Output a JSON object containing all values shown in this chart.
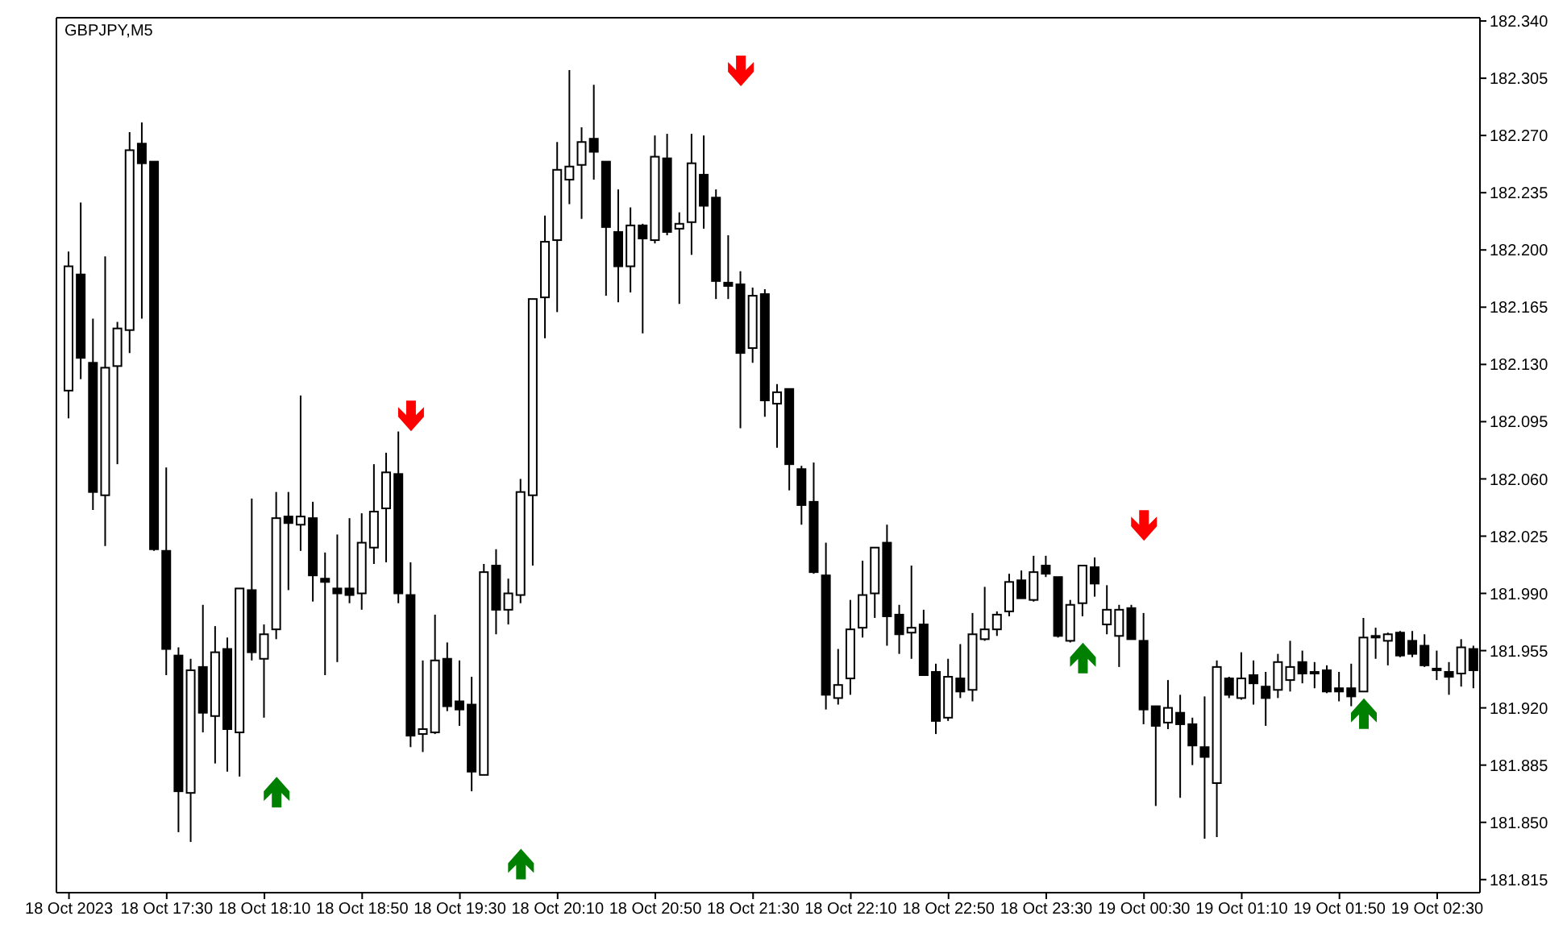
{
  "chart_data": {
    "type": "candlestick",
    "title": "GBPJPY,M5",
    "categories": [
      "18 Oct 2023",
      null,
      null,
      null,
      null,
      null,
      null,
      null,
      "18 Oct 17:30",
      null,
      null,
      null,
      null,
      null,
      null,
      null,
      "18 Oct 18:10",
      null,
      null,
      null,
      null,
      null,
      null,
      null,
      "18 Oct 18:50",
      null,
      null,
      null,
      null,
      null,
      null,
      null,
      "18 Oct 19:30",
      null,
      null,
      null,
      null,
      null,
      null,
      null,
      "18 Oct 20:10",
      null,
      null,
      null,
      null,
      null,
      null,
      null,
      "18 Oct 20:50",
      null,
      null,
      null,
      null,
      null,
      null,
      null,
      "18 Oct 21:30",
      null,
      null,
      null,
      null,
      null,
      null,
      null,
      "18 Oct 22:10",
      null,
      null,
      null,
      null,
      null,
      null,
      null,
      "18 Oct 22:50",
      null,
      null,
      null,
      null,
      null,
      null,
      null,
      "18 Oct 23:30",
      null,
      null,
      null,
      null,
      null,
      null,
      null,
      "19 Oct 00:30",
      null,
      null,
      null,
      null,
      null,
      null,
      null,
      "19 Oct 01:10",
      null,
      null,
      null,
      null,
      null,
      null,
      null,
      "19 Oct 01:50",
      null,
      null,
      null,
      null,
      null,
      null,
      null,
      "19 Oct 02:30",
      null,
      null,
      null
    ],
    "ohlc": [
      [
        182.114,
        182.199,
        182.097,
        182.19
      ],
      [
        182.185,
        182.229,
        182.121,
        182.134
      ],
      [
        182.131,
        182.158,
        182.041,
        182.052
      ],
      [
        182.05,
        182.196,
        182.019,
        182.128
      ],
      [
        182.129,
        182.156,
        182.069,
        182.152
      ],
      [
        182.151,
        182.272,
        182.137,
        182.261
      ],
      [
        182.265,
        182.278,
        182.158,
        182.253
      ],
      [
        182.254,
        182.254,
        182.016,
        182.017
      ],
      [
        182.016,
        182.067,
        181.94,
        181.956
      ],
      [
        181.952,
        181.957,
        181.844,
        181.869
      ],
      [
        181.868,
        181.95,
        181.838,
        181.943
      ],
      [
        181.945,
        181.983,
        181.905,
        181.917
      ],
      [
        181.915,
        181.97,
        181.886,
        181.954
      ],
      [
        181.956,
        181.963,
        181.881,
        181.907
      ],
      [
        181.905,
        181.993,
        181.878,
        181.993
      ],
      [
        181.992,
        182.048,
        181.949,
        181.954
      ],
      [
        181.95,
        181.971,
        181.914,
        181.965
      ],
      [
        181.968,
        182.052,
        181.962,
        182.036
      ],
      [
        182.037,
        182.052,
        181.992,
        182.033
      ],
      [
        182.032,
        182.111,
        182.016,
        182.037
      ],
      [
        182.036,
        182.046,
        181.985,
        182.001
      ],
      [
        181.999,
        182.015,
        181.94,
        181.997
      ],
      [
        181.993,
        182.026,
        181.948,
        181.99
      ],
      [
        181.993,
        182.036,
        181.984,
        181.989
      ],
      [
        181.99,
        182.039,
        181.98,
        182.021
      ],
      [
        182.018,
        182.069,
        182.008,
        182.04
      ],
      [
        182.042,
        182.076,
        182.009,
        182.064
      ],
      [
        182.063,
        182.089,
        181.984,
        181.99
      ],
      [
        181.989,
        182.009,
        181.896,
        181.903
      ],
      [
        181.904,
        181.949,
        181.893,
        181.907
      ],
      [
        181.905,
        181.977,
        181.904,
        181.949
      ],
      [
        181.95,
        181.96,
        181.918,
        181.921
      ],
      [
        181.924,
        181.949,
        181.909,
        181.919
      ],
      [
        181.922,
        181.939,
        181.869,
        181.881
      ],
      [
        181.879,
        182.008,
        181.879,
        182.003
      ],
      [
        182.007,
        182.017,
        181.965,
        181.98
      ],
      [
        181.98,
        181.999,
        181.971,
        181.99
      ],
      [
        181.989,
        182.06,
        181.984,
        182.052
      ],
      [
        182.05,
        182.17,
        182.007,
        182.17
      ],
      [
        182.171,
        182.221,
        182.146,
        182.205
      ],
      [
        182.206,
        182.266,
        182.162,
        182.249
      ],
      [
        182.243,
        182.31,
        182.228,
        182.251
      ],
      [
        182.252,
        182.275,
        182.219,
        182.266
      ],
      [
        182.268,
        182.301,
        182.243,
        182.26
      ],
      [
        182.254,
        182.254,
        182.172,
        182.214
      ],
      [
        182.211,
        182.237,
        182.168,
        182.19
      ],
      [
        182.19,
        182.226,
        182.174,
        182.215
      ],
      [
        182.215,
        182.216,
        182.149,
        182.207
      ],
      [
        182.206,
        182.27,
        182.204,
        182.257
      ],
      [
        182.256,
        182.271,
        182.209,
        182.211
      ],
      [
        182.213,
        182.223,
        182.167,
        182.216
      ],
      [
        182.217,
        182.271,
        182.197,
        182.253
      ],
      [
        182.246,
        182.27,
        182.213,
        182.227
      ],
      [
        182.232,
        182.237,
        182.17,
        182.181
      ],
      [
        182.18,
        182.209,
        182.17,
        182.178
      ],
      [
        182.179,
        182.187,
        182.091,
        182.137
      ],
      [
        182.14,
        182.177,
        182.131,
        182.172
      ],
      [
        182.173,
        182.176,
        182.098,
        182.108
      ],
      [
        182.106,
        182.118,
        182.079,
        182.113
      ],
      [
        182.115,
        182.115,
        182.053,
        182.069
      ],
      [
        182.066,
        182.068,
        182.032,
        182.044
      ],
      [
        182.046,
        182.07,
        182.002,
        182.003
      ],
      [
        182.001,
        182.021,
        181.919,
        181.928
      ],
      [
        181.926,
        181.956,
        181.922,
        181.934
      ],
      [
        181.938,
        181.986,
        181.928,
        181.968
      ],
      [
        181.969,
        182.01,
        181.963,
        181.989
      ],
      [
        181.99,
        182.018,
        181.975,
        182.018
      ],
      [
        182.021,
        182.032,
        181.958,
        181.976
      ],
      [
        181.977,
        181.983,
        181.953,
        181.965
      ],
      [
        181.966,
        182.007,
        181.95,
        181.969
      ],
      [
        181.971,
        181.98,
        181.94,
        181.94
      ],
      [
        181.942,
        181.947,
        181.904,
        181.912
      ],
      [
        181.914,
        181.95,
        181.912,
        181.939
      ],
      [
        181.938,
        181.959,
        181.926,
        181.93
      ],
      [
        181.931,
        181.978,
        181.924,
        181.965
      ],
      [
        181.962,
        181.994,
        181.961,
        181.968
      ],
      [
        181.968,
        181.979,
        181.964,
        181.977
      ],
      [
        181.979,
        182.002,
        181.976,
        181.997
      ],
      [
        181.998,
        182.004,
        181.987,
        181.987
      ],
      [
        181.986,
        182.013,
        181.985,
        182.003
      ],
      [
        182.007,
        182.013,
        182.0,
        182.002
      ],
      [
        182.0,
        182.0,
        181.963,
        181.964
      ],
      [
        181.961,
        181.986,
        181.96,
        181.983
      ],
      [
        181.984,
        182.007,
        181.976,
        182.007
      ],
      [
        182.006,
        182.012,
        181.988,
        181.996
      ],
      [
        181.971,
        181.995,
        181.965,
        181.98
      ],
      [
        181.964,
        181.983,
        181.945,
        181.98
      ],
      [
        181.981,
        181.983,
        181.962,
        181.962
      ],
      [
        181.961,
        181.978,
        181.91,
        181.919
      ],
      [
        181.921,
        181.921,
        181.86,
        181.909
      ],
      [
        181.911,
        181.937,
        181.907,
        181.92
      ],
      [
        181.917,
        181.928,
        181.865,
        181.91
      ],
      [
        181.91,
        181.914,
        181.885,
        181.897
      ],
      [
        181.896,
        181.927,
        181.84,
        181.89
      ],
      [
        181.874,
        181.949,
        181.841,
        181.945
      ],
      [
        181.938,
        181.939,
        181.926,
        181.928
      ],
      [
        181.926,
        181.954,
        181.925,
        181.938
      ],
      [
        181.94,
        181.949,
        181.922,
        181.935
      ],
      [
        181.933,
        181.942,
        181.909,
        181.926
      ],
      [
        181.931,
        181.953,
        181.926,
        181.948
      ],
      [
        181.937,
        181.961,
        181.93,
        181.945
      ],
      [
        181.948,
        181.955,
        181.935,
        181.941
      ],
      [
        181.942,
        181.948,
        181.932,
        181.941
      ],
      [
        181.943,
        181.946,
        181.929,
        181.93
      ],
      [
        181.932,
        181.942,
        181.924,
        181.93
      ],
      [
        181.932,
        181.947,
        181.921,
        181.927
      ],
      [
        181.93,
        181.975,
        181.93,
        181.963
      ],
      [
        181.963,
        181.969,
        181.95,
        181.964
      ],
      [
        181.961,
        181.966,
        181.946,
        181.965
      ],
      [
        181.966,
        181.967,
        181.951,
        181.952
      ],
      [
        181.961,
        181.967,
        181.951,
        181.953
      ],
      [
        181.958,
        181.965,
        181.945,
        181.946
      ],
      [
        181.944,
        181.955,
        181.937,
        181.943
      ],
      [
        181.942,
        181.948,
        181.928,
        181.939
      ],
      [
        181.941,
        181.962,
        181.933,
        181.957
      ],
      [
        181.956,
        181.958,
        181.932,
        181.943
      ]
    ],
    "series": [
      {
        "type": "scatter",
        "color": "#ff0000",
        "values": [
          null,
          null,
          null,
          null,
          null,
          null,
          null,
          null,
          null,
          null,
          null,
          null,
          null,
          null,
          null,
          null,
          null,
          null,
          null,
          null,
          null,
          null,
          null,
          null,
          null,
          null,
          null,
          null,
          182.098,
          null,
          null,
          null,
          null,
          null,
          null,
          null,
          null,
          null,
          null,
          null,
          null,
          null,
          null,
          null,
          null,
          null,
          null,
          null,
          null,
          null,
          null,
          null,
          null,
          null,
          null,
          182.309,
          null,
          null,
          null,
          null,
          null,
          null,
          null,
          null,
          null,
          null,
          null,
          null,
          null,
          null,
          null,
          null,
          null,
          null,
          null,
          null,
          null,
          null,
          null,
          null,
          null,
          null,
          null,
          null,
          null,
          null,
          null,
          null,
          182.031,
          null,
          null,
          null,
          null,
          null,
          null,
          null,
          null,
          null,
          null,
          null,
          null,
          null,
          null,
          null,
          null,
          null,
          null,
          null,
          null,
          null,
          null,
          null,
          null,
          null,
          null,
          null
        ]
      },
      {
        "type": "scatter",
        "color": "#008000",
        "values": [
          null,
          null,
          null,
          null,
          null,
          null,
          null,
          null,
          null,
          null,
          null,
          null,
          null,
          null,
          null,
          null,
          null,
          181.869,
          null,
          null,
          null,
          null,
          null,
          null,
          null,
          null,
          null,
          null,
          null,
          null,
          null,
          null,
          null,
          null,
          null,
          null,
          null,
          181.825,
          null,
          null,
          null,
          null,
          null,
          null,
          null,
          null,
          null,
          null,
          null,
          null,
          null,
          null,
          null,
          null,
          null,
          null,
          null,
          null,
          null,
          null,
          null,
          null,
          null,
          null,
          null,
          null,
          null,
          null,
          null,
          null,
          null,
          null,
          null,
          null,
          null,
          null,
          null,
          null,
          null,
          null,
          null,
          null,
          null,
          181.951,
          null,
          null,
          null,
          null,
          null,
          null,
          null,
          null,
          null,
          null,
          null,
          null,
          null,
          null,
          null,
          null,
          null,
          null,
          null,
          null,
          null,
          null,
          181.917,
          null,
          null,
          null,
          null,
          null,
          null,
          null,
          null,
          null
        ]
      }
    ],
    "ylim": [
      181.807,
      182.342
    ],
    "yticks": [
      {
        "value": 182.34,
        "label": "182.340"
      },
      {
        "value": 182.305,
        "label": "182.305"
      },
      {
        "value": 182.27,
        "label": "182.270"
      },
      {
        "value": 182.235,
        "label": "182.235"
      },
      {
        "value": 182.2,
        "label": "182.200"
      },
      {
        "value": 182.165,
        "label": "182.165"
      },
      {
        "value": 182.13,
        "label": "182.130"
      },
      {
        "value": 182.095,
        "label": "182.095"
      },
      {
        "value": 182.06,
        "label": "182.060"
      },
      {
        "value": 182.025,
        "label": "182.025"
      },
      {
        "value": 181.99,
        "label": "181.990"
      },
      {
        "value": 181.955,
        "label": "181.955"
      },
      {
        "value": 181.92,
        "label": "181.920"
      },
      {
        "value": 181.885,
        "label": "181.885"
      },
      {
        "value": 181.85,
        "label": "181.850"
      },
      {
        "value": 181.815,
        "label": "181.815"
      }
    ]
  }
}
